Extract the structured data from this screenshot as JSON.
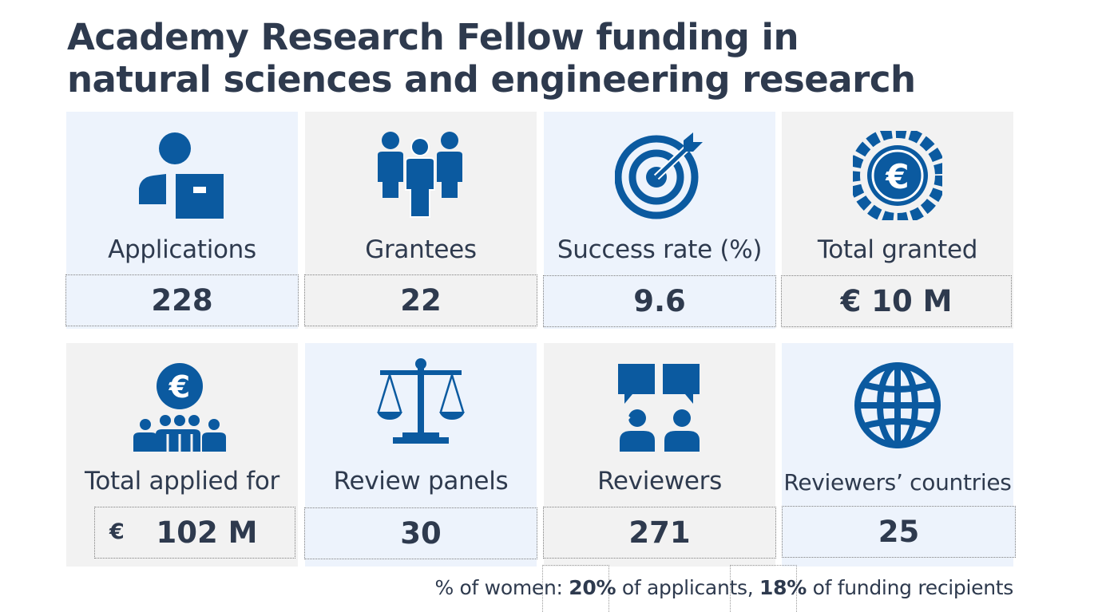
{
  "title": {
    "line1": "Academy Research Fellow funding in",
    "line2": "natural sciences and engineering research"
  },
  "stats": [
    {
      "label": "Applications",
      "value": "228",
      "icon": "applicant-icon"
    },
    {
      "label": "Grantees",
      "value": "22",
      "icon": "people-group-icon"
    },
    {
      "label": "Success rate (%)",
      "value": "9.6",
      "icon": "target-icon"
    },
    {
      "label": "Total granted",
      "value": "€ 10 M",
      "icon": "euro-coin-icon"
    },
    {
      "label": "Total applied for",
      "value_currency": "€",
      "value": "102 M",
      "icon": "euro-crowd-icon"
    },
    {
      "label": "Review panels",
      "value": "30",
      "icon": "scales-icon"
    },
    {
      "label": "Reviewers",
      "value": "271",
      "icon": "reviewers-speech-icon"
    },
    {
      "label": "Reviewers’ countries",
      "value": "25",
      "icon": "globe-icon"
    }
  ],
  "footer": {
    "prefix": "% of women: ",
    "applicants_pct": "20%",
    "applicants_text": " of applicants, ",
    "recipients_pct": "18%",
    "recipients_text": " of funding recipients"
  },
  "colors": {
    "icon_blue": "#0b5aa0",
    "text_dark": "#2e3a4e",
    "card_blue": "#edf3fc",
    "card_grey": "#f2f2f2"
  }
}
